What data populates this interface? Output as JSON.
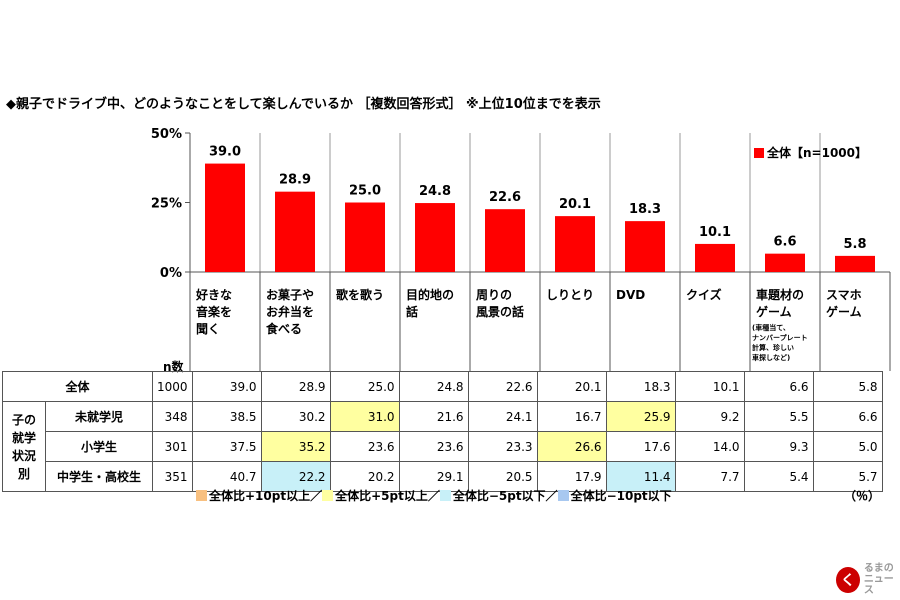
{
  "chart_data": {
    "type": "bar",
    "title": "◆親子でドライブ中、どのようなことをして楽しんでいるか ［複数回答形式］ ※上位10位までを表示",
    "categories": [
      "好きな\n音楽を\n聞く",
      "お菓子や\nお弁当を\n食べる",
      "歌を歌う",
      "目的地の\n話",
      "周りの\n風景の話",
      "しりとり",
      "DVD",
      "クイズ",
      "車題材の\nゲーム",
      "スマホ\nゲーム"
    ],
    "category_note": "(車種当て、\nナンバープレート\n計算、珍しい\n車探しなど)",
    "series": [
      {
        "name": "全体【n=1000】",
        "values": [
          39.0,
          28.9,
          25.0,
          24.8,
          22.6,
          20.1,
          18.3,
          10.1,
          6.6,
          5.8
        ]
      }
    ],
    "value_labels": [
      "39.0",
      "28.9",
      "25.0",
      "24.8",
      "22.6",
      "20.1",
      "18.3",
      "10.1",
      "6.6",
      "5.8"
    ],
    "ylim": [
      0,
      50
    ],
    "ytick_labels": [
      "0%",
      "25%",
      "50%"
    ],
    "ytick_values": [
      0,
      25,
      50
    ],
    "bar_color": "#ff0000",
    "legend": "全体【n=1000】",
    "legend_position": "top-right"
  },
  "table": {
    "n_header": "n数",
    "side_label": "子の\n就学\n状況\n別",
    "rows": [
      {
        "label": "全体",
        "n": "1000",
        "values": [
          "39.0",
          "28.9",
          "25.0",
          "24.8",
          "22.6",
          "20.1",
          "18.3",
          "10.1",
          "6.6",
          "5.8"
        ],
        "hl": [
          "",
          "",
          "",
          "",
          "",
          "",
          "",
          "",
          "",
          ""
        ]
      },
      {
        "label": "未就学児",
        "n": "348",
        "values": [
          "38.5",
          "30.2",
          "31.0",
          "21.6",
          "24.1",
          "16.7",
          "25.9",
          "9.2",
          "5.5",
          "6.6"
        ],
        "hl": [
          "",
          "",
          "y",
          "",
          "",
          "",
          "y",
          "",
          "",
          ""
        ]
      },
      {
        "label": "小学生",
        "n": "301",
        "values": [
          "37.5",
          "35.2",
          "23.6",
          "23.6",
          "23.3",
          "26.6",
          "17.6",
          "14.0",
          "9.3",
          "5.0"
        ],
        "hl": [
          "",
          "y",
          "",
          "",
          "",
          "y",
          "",
          "",
          "",
          ""
        ]
      },
      {
        "label": "中学生・高校生",
        "n": "351",
        "values": [
          "40.7",
          "22.2",
          "20.2",
          "29.1",
          "20.5",
          "17.9",
          "11.4",
          "7.7",
          "5.4",
          "5.7"
        ],
        "hl": [
          "",
          "c",
          "",
          "",
          "",
          "",
          "c",
          "",
          "",
          ""
        ]
      }
    ]
  },
  "footnote": [
    {
      "text": "全体比+10pt以上／",
      "color": "#f8c080"
    },
    {
      "text": "全体比+5pt以上／",
      "color": "#ffffa0"
    },
    {
      "text": "全体比−5pt以下／",
      "color": "#c8f0f8"
    },
    {
      "text": "全体比−10pt以下",
      "color": "#a8c8f0"
    }
  ],
  "unit": "（％）",
  "logo": {
    "mark": "く",
    "text": "るまの\nニュース"
  }
}
